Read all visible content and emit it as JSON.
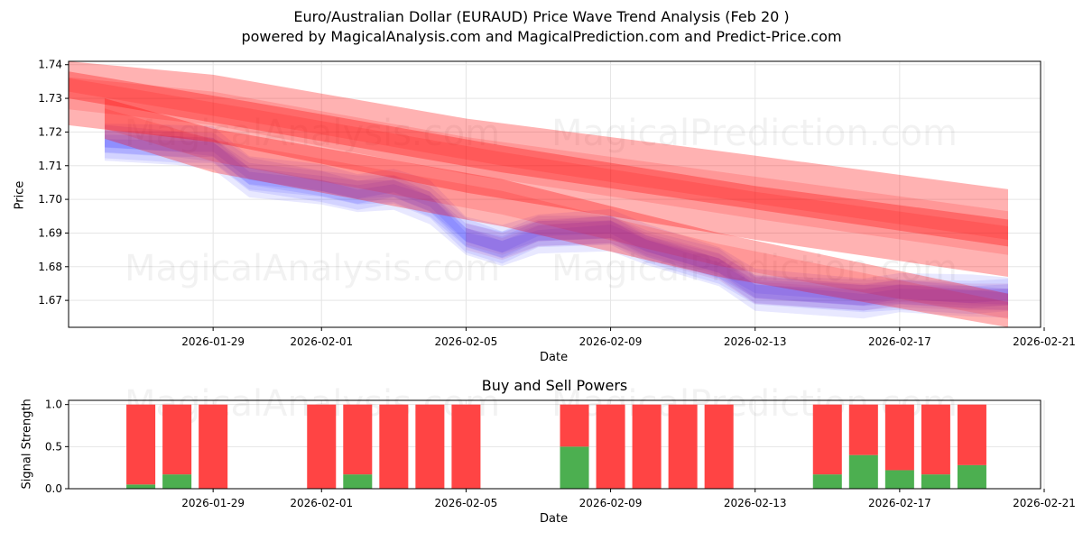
{
  "title_line1": "Euro/Australian Dollar (EURAUD) Price Wave Trend Analysis (Feb 20 )",
  "title_line2": "powered by MagicalAnalysis.com and MagicalPrediction.com and Predict-Price.com",
  "watermarks": [
    "MagicalAnalysis.com",
    "MagicalPrediction.com"
  ],
  "colors": {
    "sell": "#ff0000",
    "buy": "#0000ff",
    "bar_sell": "#ff4444",
    "bar_buy": "#4caf50"
  },
  "chart_data": [
    {
      "type": "area",
      "ylabel": "Price",
      "xlabel": "Date",
      "xlim": [
        "2026-01-25",
        "2026-02-21"
      ],
      "ylim": [
        1.662,
        1.741
      ],
      "x_ticks": [
        "2026-01-29",
        "2026-02-01",
        "2026-02-05",
        "2026-02-09",
        "2026-02-13",
        "2026-02-17",
        "2026-02-21"
      ],
      "y_ticks": [
        1.67,
        1.68,
        1.69,
        1.7,
        1.71,
        1.72,
        1.73,
        1.74
      ],
      "series": [
        {
          "name": "sell-wave-bands (red)",
          "bands": [
            {
              "x": [
                "2026-01-25",
                "2026-01-29",
                "2026-02-05",
                "2026-02-13",
                "2026-02-20"
              ],
              "upper": [
                1.741,
                1.737,
                1.724,
                1.713,
                1.703
              ],
              "lower": [
                1.722,
                1.717,
                1.702,
                1.688,
                1.677
              ]
            },
            {
              "x": [
                "2026-01-25",
                "2026-01-30",
                "2026-02-06",
                "2026-02-13",
                "2026-02-20"
              ],
              "upper": [
                1.738,
                1.729,
                1.716,
                1.704,
                1.694
              ],
              "lower": [
                1.73,
                1.721,
                1.708,
                1.697,
                1.686
              ]
            },
            {
              "x": [
                "2026-01-26",
                "2026-01-29",
                "2026-02-06",
                "2026-02-12",
                "2026-02-20"
              ],
              "upper": [
                1.73,
                1.721,
                1.706,
                1.69,
                1.672
              ],
              "lower": [
                1.718,
                1.708,
                1.692,
                1.677,
                1.662
              ]
            }
          ]
        },
        {
          "name": "buy-wave-bands (blue)",
          "x": [
            "2026-01-26",
            "2026-01-28",
            "2026-01-29",
            "2026-01-30",
            "2026-02-01",
            "2026-02-02",
            "2026-02-03",
            "2026-02-04",
            "2026-02-05",
            "2026-02-06",
            "2026-02-07",
            "2026-02-09",
            "2026-02-10",
            "2026-02-12",
            "2026-02-13",
            "2026-02-16",
            "2026-02-17",
            "2026-02-19",
            "2026-02-20"
          ],
          "values": [
            1.717,
            1.716,
            1.715,
            1.707,
            1.704,
            1.702,
            1.703,
            1.699,
            1.689,
            1.686,
            1.69,
            1.691,
            1.686,
            1.68,
            1.673,
            1.671,
            1.672,
            1.671,
            1.671
          ]
        }
      ]
    },
    {
      "type": "bar",
      "title": "Buy and Sell Powers",
      "ylabel": "Signal Strength",
      "xlabel": "Date",
      "ylim": [
        0,
        1.05
      ],
      "y_ticks": [
        0.0,
        0.5,
        1.0
      ],
      "x_ticks": [
        "2026-01-29",
        "2026-02-01",
        "2026-02-05",
        "2026-02-09",
        "2026-02-13",
        "2026-02-17",
        "2026-02-21"
      ],
      "categories": [
        "2026-01-27",
        "2026-01-28",
        "2026-01-29",
        "2026-02-01",
        "2026-02-02",
        "2026-02-03",
        "2026-02-04",
        "2026-02-05",
        "2026-02-08",
        "2026-02-09",
        "2026-02-10",
        "2026-02-11",
        "2026-02-12",
        "2026-02-15",
        "2026-02-16",
        "2026-02-17",
        "2026-02-18",
        "2026-02-19"
      ],
      "series": [
        {
          "name": "Buy",
          "values": [
            0.05,
            0.17,
            0.0,
            0.0,
            0.17,
            0.0,
            0.0,
            0.0,
            0.5,
            0.0,
            0.0,
            0.0,
            0.0,
            0.17,
            0.4,
            0.22,
            0.17,
            0.28
          ]
        },
        {
          "name": "Sell",
          "values": [
            0.95,
            0.83,
            1.0,
            1.0,
            0.83,
            1.0,
            1.0,
            1.0,
            0.5,
            1.0,
            1.0,
            1.0,
            1.0,
            0.83,
            0.6,
            0.78,
            0.83,
            0.72
          ]
        }
      ]
    }
  ]
}
